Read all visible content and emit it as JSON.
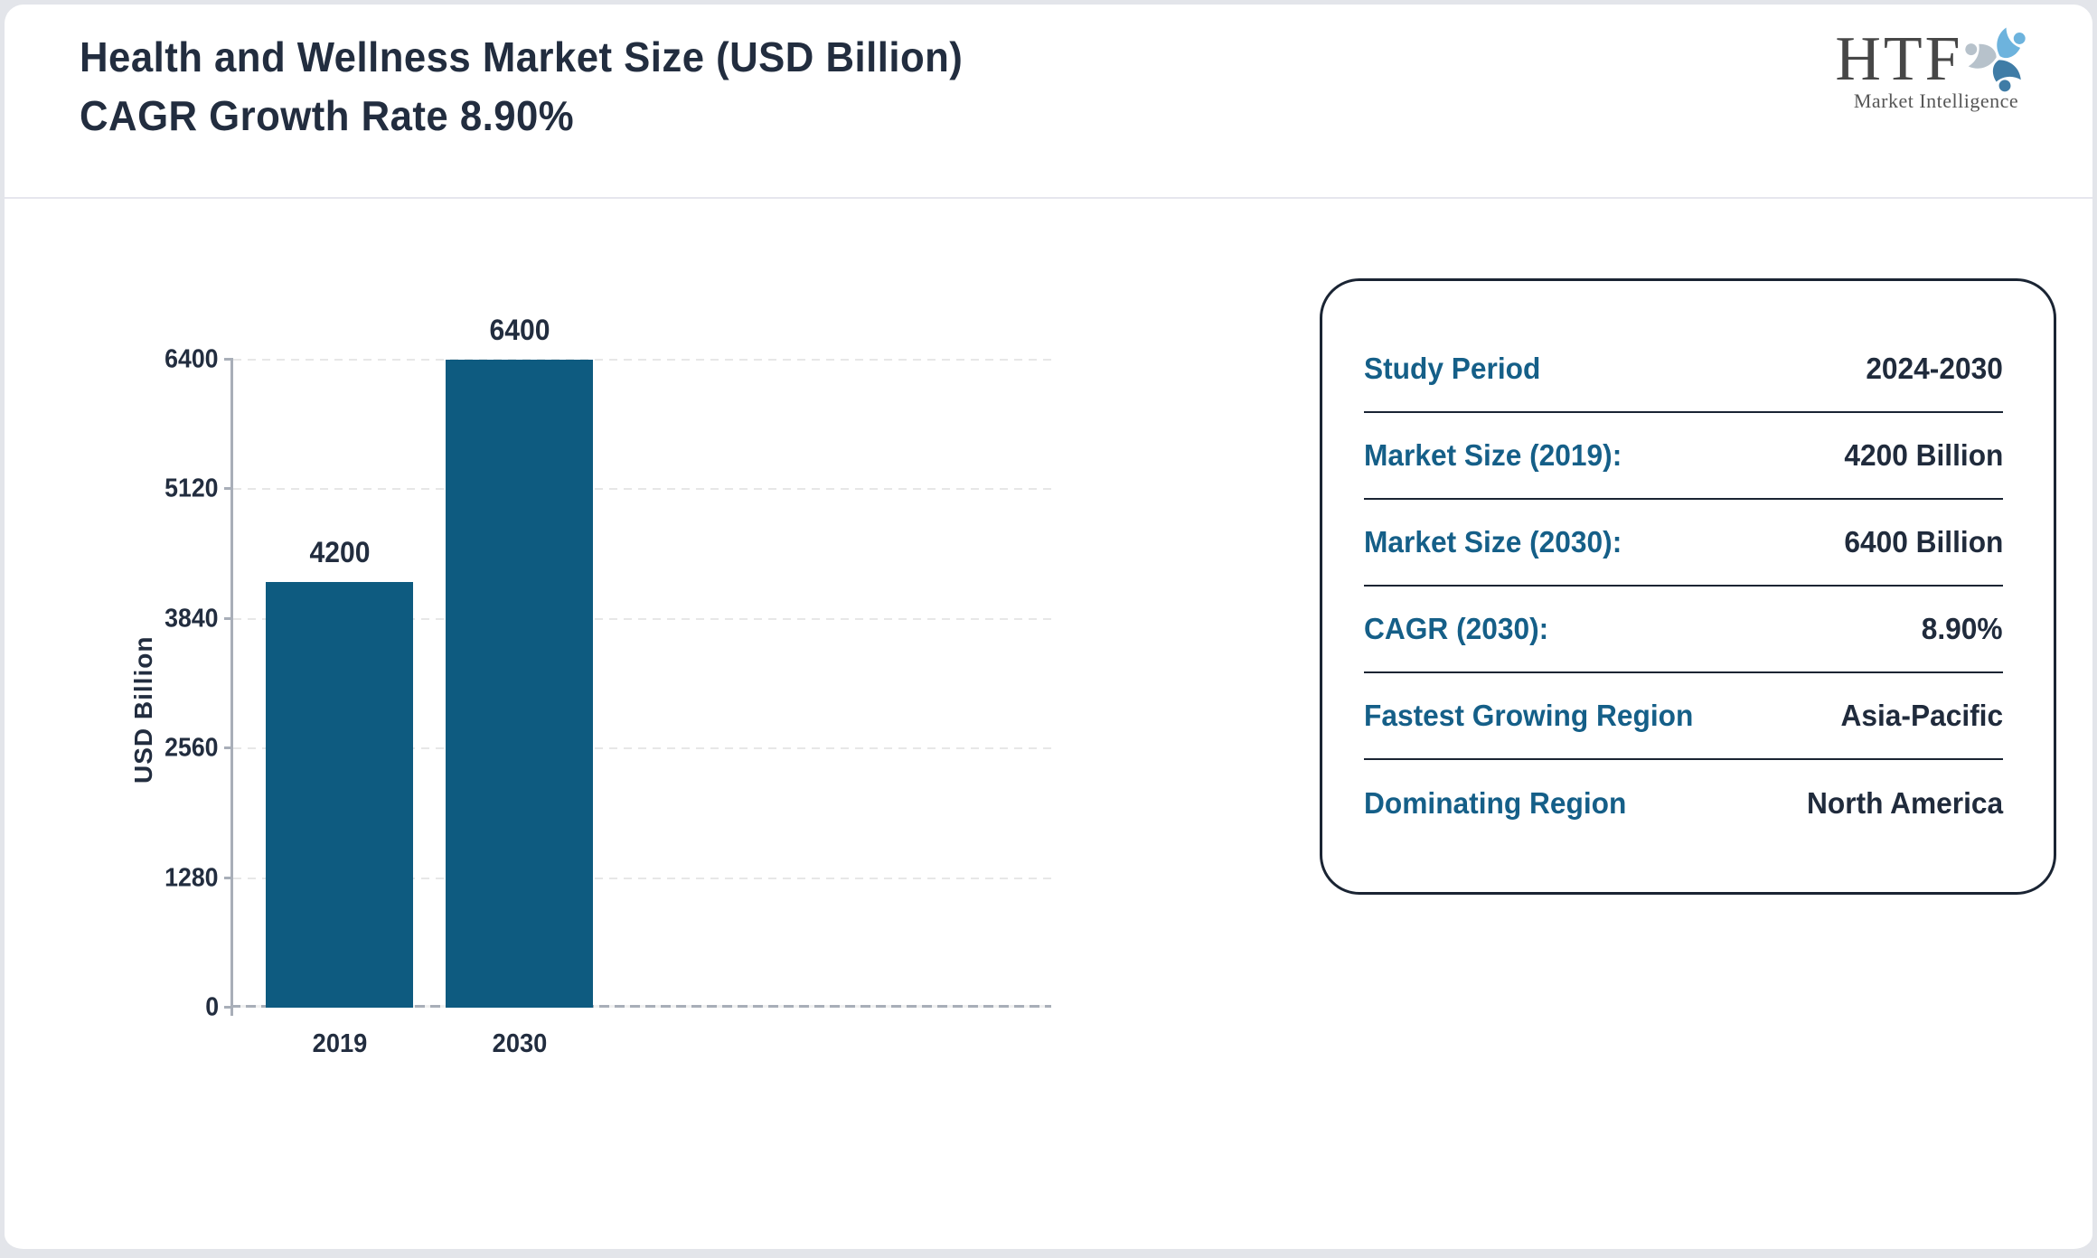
{
  "header": {
    "title_line1": "Health and Wellness Market Size (USD Billion)",
    "title_line2": "CAGR Growth Rate 8.90%"
  },
  "logo": {
    "text": "HTF",
    "subtext": "Market Intelligence",
    "colors": {
      "light_blue": "#6db3dd",
      "gray": "#b7c2cb",
      "dark_blue": "#3f7ca6"
    }
  },
  "chart_data": {
    "type": "bar",
    "title": "",
    "categories": [
      "2019",
      "2030"
    ],
    "values": [
      4200,
      6400
    ],
    "value_labels": [
      "4200",
      "6400"
    ],
    "xlabel": "",
    "ylabel": "USD Billion",
    "ylim": [
      0,
      6400
    ],
    "yticks": [
      0,
      1280,
      2560,
      3840,
      5120,
      6400
    ],
    "grid": true,
    "bar_color": "#0e5b80",
    "layout": {
      "bar_centers_pct": [
        13,
        35
      ],
      "bar_width_pct": 18,
      "legend": "none"
    }
  },
  "info_panel": {
    "rows": [
      {
        "label": "Study Period",
        "value": "2024-2030"
      },
      {
        "label": "Market Size (2019):",
        "value": "4200 Billion"
      },
      {
        "label": "Market Size (2030):",
        "value": "6400 Billion"
      },
      {
        "label": "CAGR (2030):",
        "value": "8.90%"
      },
      {
        "label": "Fastest Growing Region",
        "value": "Asia-Pacific"
      },
      {
        "label": "Dominating Region",
        "value": "North America"
      }
    ],
    "label_color": "#155f88",
    "value_color": "#202b3c",
    "border_color": "#1a2433"
  }
}
